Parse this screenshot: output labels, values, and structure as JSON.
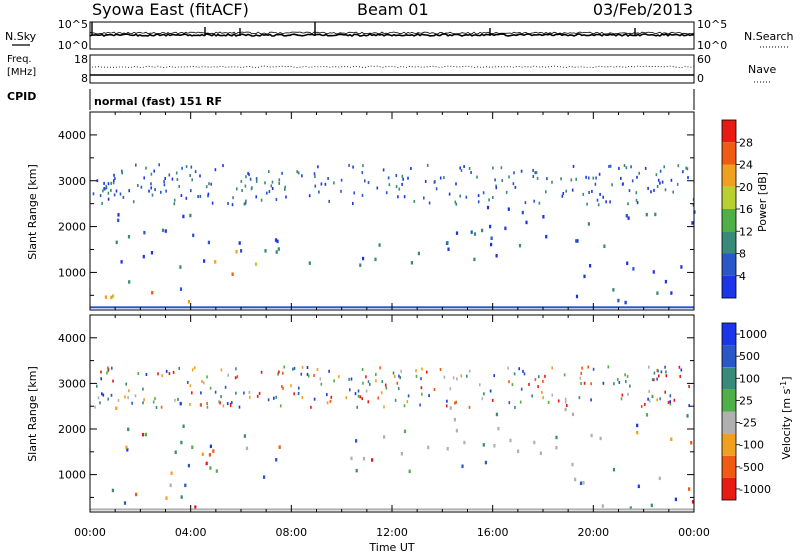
{
  "header": {
    "station": "Syowa East (fitACF)",
    "beam": "Beam 01",
    "date": "03/Feb/2013"
  },
  "noise_panel": {
    "left_label": "N.Sky",
    "right_label": "N.Search",
    "left_ticks": [
      "10^5",
      "10^0"
    ],
    "right_ticks": [
      "10^5",
      "10^0"
    ]
  },
  "freq_panel": {
    "left_label_line1": "Freq.",
    "left_label_line2": "[MHz]",
    "right_label": "Nave",
    "left_ticks": [
      "18",
      "8"
    ],
    "right_ticks": [
      "60",
      "0"
    ]
  },
  "cpid": {
    "label": "CPID",
    "mode": "normal (fast) 151 RF"
  },
  "x_axis": {
    "label": "Time UT",
    "ticks": [
      "00:00",
      "04:00",
      "08:00",
      "12:00",
      "16:00",
      "20:00",
      "00:00"
    ]
  },
  "chart_data": [
    {
      "type": "heatmap",
      "quantity": "power",
      "ylabel": "Slant Range [km]",
      "yticks": [
        1000,
        2000,
        3000,
        4000
      ],
      "ylim": [
        180,
        4500
      ],
      "xlim_hours": [
        0,
        24
      ],
      "colorbar_label": "Power [dB]",
      "colorbar_ticks": [
        4,
        8,
        12,
        16,
        20,
        24,
        28
      ],
      "colorbar_colors": [
        "#1c35e8",
        "#2a58c8",
        "#3a8a7a",
        "#50b048",
        "#b8d030",
        "#f0a020",
        "#f05a14",
        "#e81a14"
      ],
      "echo_regions": [
        {
          "t0": 0.2,
          "t1": 4.2,
          "r0": 250,
          "r1": 900
        },
        {
          "t0": 3.0,
          "t1": 7.5,
          "r0": 800,
          "r1": 1900
        },
        {
          "t0": 1.0,
          "t1": 5.0,
          "r0": 1100,
          "r1": 2600
        },
        {
          "t0": 8.0,
          "t1": 15.5,
          "r0": 1100,
          "r1": 1250
        },
        {
          "t0": 10.0,
          "t1": 17.0,
          "r0": 1300,
          "r1": 2000
        },
        {
          "t0": 14.0,
          "t1": 20.5,
          "r0": 1500,
          "r1": 2500
        },
        {
          "t0": 19.0,
          "t1": 24.0,
          "r0": 300,
          "r1": 1300
        },
        {
          "t0": 20.5,
          "t1": 24.0,
          "r0": 1700,
          "r1": 2400
        }
      ]
    },
    {
      "type": "heatmap",
      "quantity": "velocity",
      "ylabel": "Slant Range [km]",
      "yticks": [
        1000,
        2000,
        3000,
        4000
      ],
      "ylim": [
        180,
        4500
      ],
      "xlim_hours": [
        0,
        24
      ],
      "colorbar_label": "Velocity [m s^-1]",
      "colorbar_ticks": [
        1000,
        500,
        100,
        25,
        -25,
        -100,
        -500,
        -1000
      ],
      "colorbar_colors": [
        "#1c35e8",
        "#2a58c8",
        "#3a8a7a",
        "#50b048",
        "#b0b0b0",
        "#f0a020",
        "#f05a14",
        "#e81a14"
      ],
      "echo_regions": [
        {
          "t0": 0.2,
          "t1": 4.2,
          "r0": 250,
          "r1": 900
        },
        {
          "t0": 3.0,
          "t1": 7.5,
          "r0": 800,
          "r1": 1900
        },
        {
          "t0": 1.0,
          "t1": 5.0,
          "r0": 1100,
          "r1": 2600
        },
        {
          "t0": 8.0,
          "t1": 15.5,
          "r0": 1100,
          "r1": 1250
        },
        {
          "t0": 10.0,
          "t1": 17.0,
          "r0": 1300,
          "r1": 2000
        },
        {
          "t0": 14.0,
          "t1": 20.5,
          "r0": 1500,
          "r1": 2500
        },
        {
          "t0": 19.0,
          "t1": 24.0,
          "r0": 300,
          "r1": 1300
        },
        {
          "t0": 20.5,
          "t1": 24.0,
          "r0": 1700,
          "r1": 2400
        }
      ]
    }
  ]
}
